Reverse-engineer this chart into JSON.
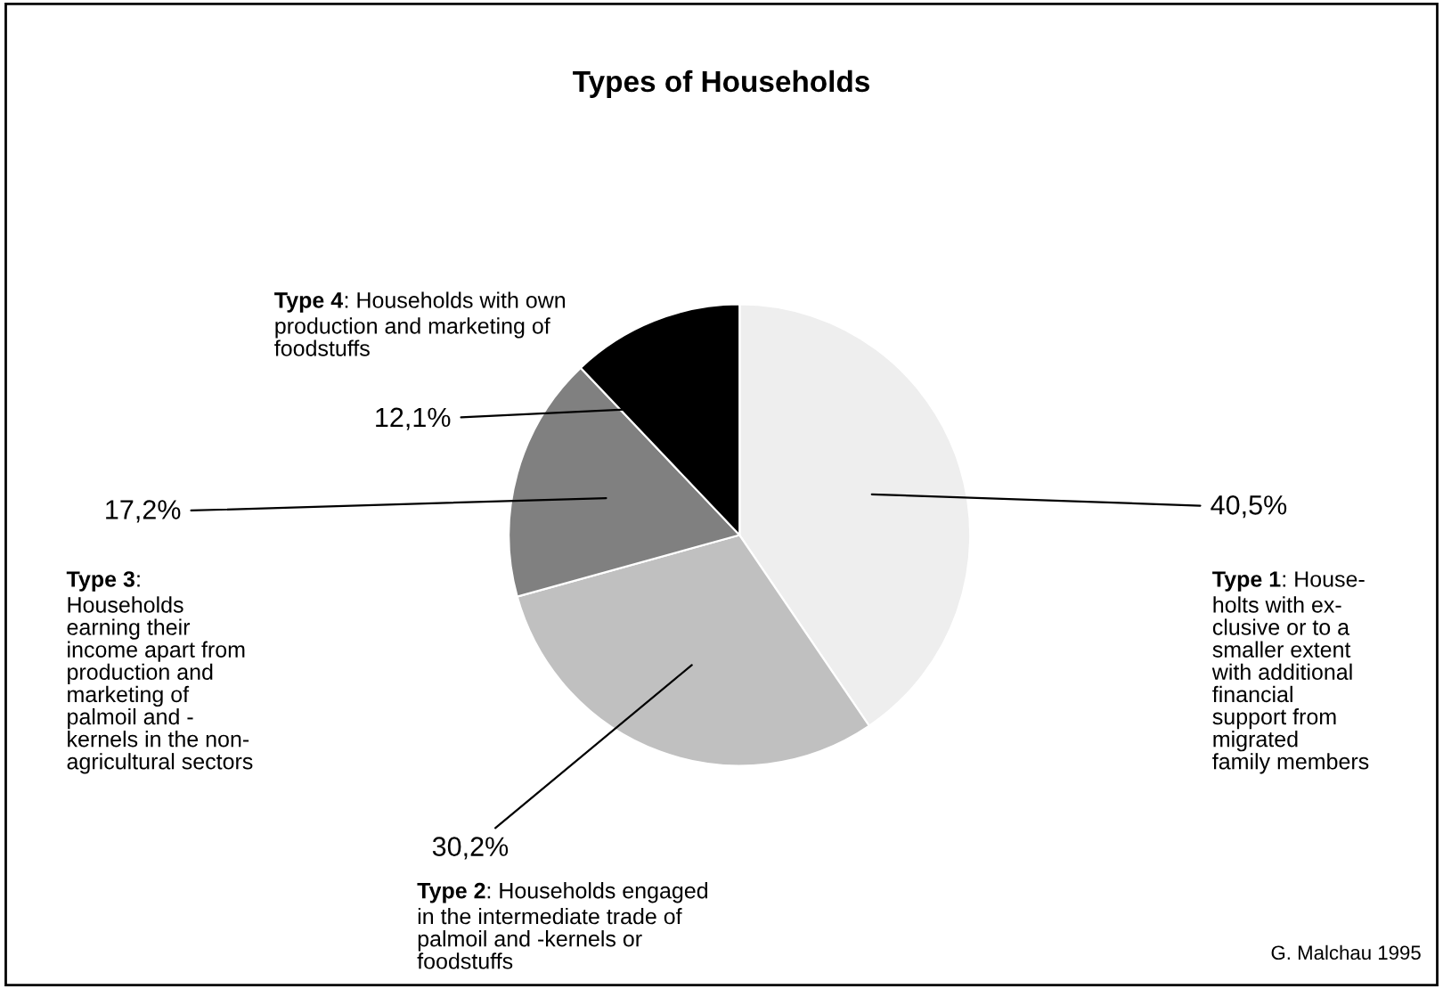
{
  "chart_data": {
    "type": "pie",
    "title": "Types of Households",
    "categories": [
      "Type 1: House-\nholts with ex-\nclusive or to a\nsmaller extent\nwith additional\nfinancial\nsupport from\nmigrated\nfamily members",
      "Type 2: Households engaged\nin the intermediate trade of\npalmoil and -kernels or\nfoodstuffs",
      "Type 3:\nHouseholds\nearning their\nincome apart from\nproduction and\nmarketing of\npalmoil and -\nkernels in the non-\nagricultural sectors",
      "Type 4: Households with own\nproduction and marketing of\nfoodstuffs"
    ],
    "values": [
      40.5,
      30.2,
      17.2,
      12.1
    ],
    "value_labels": [
      "40,5%",
      "30,2%",
      "17,2%",
      "12,1%"
    ],
    "colors": [
      "#eeeeee",
      "#c0c0c0",
      "#808080",
      "#000000"
    ],
    "annotations": [
      "G. Malchau 1995"
    ]
  }
}
